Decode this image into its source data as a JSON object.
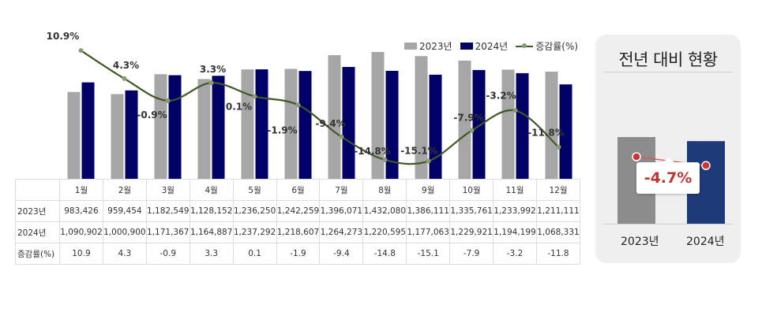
{
  "chart_data": [
    {
      "type": "bar",
      "categories": [
        "1월",
        "2월",
        "3월",
        "4월",
        "5월",
        "6월",
        "7월",
        "8월",
        "9월",
        "10월",
        "11월",
        "12월"
      ],
      "series": [
        {
          "name": "2023년",
          "color": "#a6a6a6",
          "values": [
            983426,
            959454,
            1182549,
            1128152,
            1236250,
            1242259,
            1396071,
            1432080,
            1386111,
            1335761,
            1233992,
            1211111
          ]
        },
        {
          "name": "2024년",
          "color": "#000066",
          "values": [
            1090902,
            1000900,
            1171367,
            1164887,
            1237292,
            1218607,
            1264273,
            1220595,
            1177063,
            1229921,
            1194199,
            1068331
          ]
        }
      ],
      "line_series": {
        "name": "증감률(%)",
        "color": "#3d5a24",
        "values": [
          10.9,
          4.3,
          -0.9,
          3.3,
          0.1,
          -1.9,
          -9.4,
          -14.8,
          -15.1,
          -7.9,
          -3.2,
          -11.8
        ]
      },
      "data_labels": [
        "10.9%",
        "4.3%",
        "-0.9%",
        "3.3%",
        "0.1%",
        "-1.9%",
        "-9.4%",
        "-14.8%",
        "-15.1%",
        "-7.9%",
        "-3.2%",
        "-11.8%"
      ],
      "legend_position": "top-right",
      "grid": false
    },
    {
      "type": "bar",
      "categories": [
        "2023년",
        "2024년"
      ],
      "values_relative": [
        1.0,
        0.953
      ],
      "colors": [
        "#8c8c8c",
        "#1f3a78"
      ],
      "change_label": "-4.7%"
    }
  ],
  "legend": {
    "y2023": "2023년",
    "y2024": "2024년",
    "rate": "증감률(%)"
  },
  "table": {
    "headers": [
      "1월",
      "2월",
      "3월",
      "4월",
      "5월",
      "6월",
      "7월",
      "8월",
      "9월",
      "10월",
      "11월",
      "12월"
    ],
    "rows": [
      {
        "label": "2023년",
        "values": [
          "983,426",
          "959,454",
          "1,182,549",
          "1,128,152",
          "1,236,250",
          "1,242,259",
          "1,396,071",
          "1,432,080",
          "1,386,111",
          "1,335,761",
          "1,233,992",
          "1,211,111"
        ]
      },
      {
        "label": "2024년",
        "values": [
          "1,090,902",
          "1,000,900",
          "1,171,367",
          "1,164,887",
          "1,237,292",
          "1,218,607",
          "1,264,273",
          "1,220,595",
          "1,177,063",
          "1,229,921",
          "1,194,199",
          "1,068,331"
        ]
      },
      {
        "label": "증감률(%)",
        "values": [
          "10.9",
          "4.3",
          "-0.9",
          "3.3",
          "0.1",
          "-1.9",
          "-9.4",
          "-14.8",
          "-15.1",
          "-7.9",
          "-3.2",
          "-11.8"
        ]
      }
    ]
  },
  "panel": {
    "title": "전년 대비 현황",
    "change": "-4.7%",
    "year_a": "2023년",
    "year_b": "2024년"
  }
}
